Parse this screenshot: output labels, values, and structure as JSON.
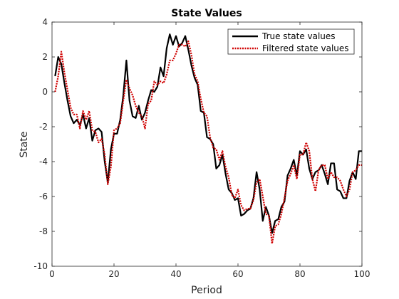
{
  "chart_data": {
    "type": "line",
    "title": "State Values",
    "xlabel": "Period",
    "ylabel": "State",
    "xlim": [
      0,
      100
    ],
    "ylim": [
      -10,
      4
    ],
    "x_ticks": [
      0,
      20,
      40,
      60,
      80,
      100
    ],
    "y_ticks": [
      -10,
      -8,
      -6,
      -4,
      -2,
      0,
      2,
      4
    ],
    "grid": false,
    "legend_position": "top-right",
    "x": [
      1,
      2,
      3,
      4,
      5,
      6,
      7,
      8,
      9,
      10,
      11,
      12,
      13,
      14,
      15,
      16,
      17,
      18,
      19,
      20,
      21,
      22,
      23,
      24,
      25,
      26,
      27,
      28,
      29,
      30,
      31,
      32,
      33,
      34,
      35,
      36,
      37,
      38,
      39,
      40,
      41,
      42,
      43,
      44,
      45,
      46,
      47,
      48,
      49,
      50,
      51,
      52,
      53,
      54,
      55,
      56,
      57,
      58,
      59,
      60,
      61,
      62,
      63,
      64,
      65,
      66,
      67,
      68,
      69,
      70,
      71,
      72,
      73,
      74,
      75,
      76,
      77,
      78,
      79,
      80,
      81,
      82,
      83,
      84,
      85,
      86,
      87,
      88,
      89,
      90,
      91,
      92,
      93,
      94,
      95,
      96,
      97,
      98,
      99,
      100
    ],
    "series": [
      {
        "name": "True state values",
        "color": "#000000",
        "line_style": "solid",
        "values": [
          0.9,
          2.0,
          1.6,
          0.5,
          -0.5,
          -1.4,
          -1.8,
          -1.6,
          -1.9,
          -1.3,
          -2.1,
          -1.5,
          -2.8,
          -2.2,
          -2.1,
          -2.3,
          -4.0,
          -5.2,
          -3.3,
          -2.4,
          -2.4,
          -1.6,
          -0.2,
          1.8,
          -0.5,
          -1.4,
          -1.5,
          -0.8,
          -1.6,
          -1.2,
          -0.5,
          0.1,
          0.0,
          0.3,
          1.4,
          0.9,
          2.5,
          3.3,
          2.7,
          3.2,
          2.6,
          2.8,
          3.2,
          2.4,
          1.5,
          0.8,
          0.4,
          -1.1,
          -1.2,
          -2.6,
          -2.7,
          -3.0,
          -4.4,
          -4.2,
          -3.6,
          -4.7,
          -5.6,
          -5.8,
          -6.2,
          -6.1,
          -7.1,
          -7.0,
          -6.8,
          -6.7,
          -6.1,
          -4.6,
          -5.6,
          -7.4,
          -6.6,
          -7.1,
          -8.1,
          -7.4,
          -7.3,
          -6.6,
          -6.3,
          -4.8,
          -4.4,
          -3.9,
          -4.8,
          -3.4,
          -3.6,
          -3.3,
          -4.4,
          -5.0,
          -4.6,
          -4.5,
          -4.2,
          -4.7,
          -5.3,
          -4.1,
          -4.1,
          -5.6,
          -5.7,
          -6.1,
          -6.1,
          -5.1,
          -4.6,
          -5.0,
          -3.4,
          -3.4
        ]
      },
      {
        "name": "Filtered state values",
        "color": "#d00000",
        "line_style": "dotted",
        "values": [
          0.0,
          0.9,
          2.3,
          1.1,
          0.1,
          -0.9,
          -1.3,
          -1.3,
          -2.1,
          -1.1,
          -1.6,
          -1.1,
          -2.2,
          -2.3,
          -2.9,
          -2.7,
          -3.6,
          -5.3,
          -4.3,
          -2.2,
          -2.1,
          -1.8,
          -0.5,
          0.7,
          0.2,
          -0.2,
          -0.8,
          -1.2,
          -1.4,
          -2.1,
          -0.7,
          -0.5,
          0.6,
          0.4,
          0.6,
          0.5,
          1.0,
          1.8,
          1.8,
          2.2,
          2.7,
          2.7,
          2.6,
          2.9,
          2.1,
          1.0,
          0.6,
          -0.4,
          -1.2,
          -1.4,
          -2.6,
          -3.2,
          -3.3,
          -3.9,
          -3.4,
          -4.3,
          -4.9,
          -5.9,
          -6.1,
          -5.6,
          -6.5,
          -6.8,
          -6.7,
          -6.7,
          -6.2,
          -5.2,
          -5.0,
          -6.0,
          -7.0,
          -7.1,
          -8.7,
          -7.7,
          -7.6,
          -7.0,
          -6.1,
          -5.1,
          -4.7,
          -4.2,
          -5.0,
          -3.6,
          -3.6,
          -2.9,
          -3.4,
          -5.0,
          -5.7,
          -4.5,
          -4.2,
          -4.2,
          -5.0,
          -4.6,
          -4.9,
          -4.9,
          -5.1,
          -5.6,
          -6.0,
          -5.6,
          -4.6,
          -4.5,
          -4.2,
          -4.2
        ]
      }
    ]
  }
}
